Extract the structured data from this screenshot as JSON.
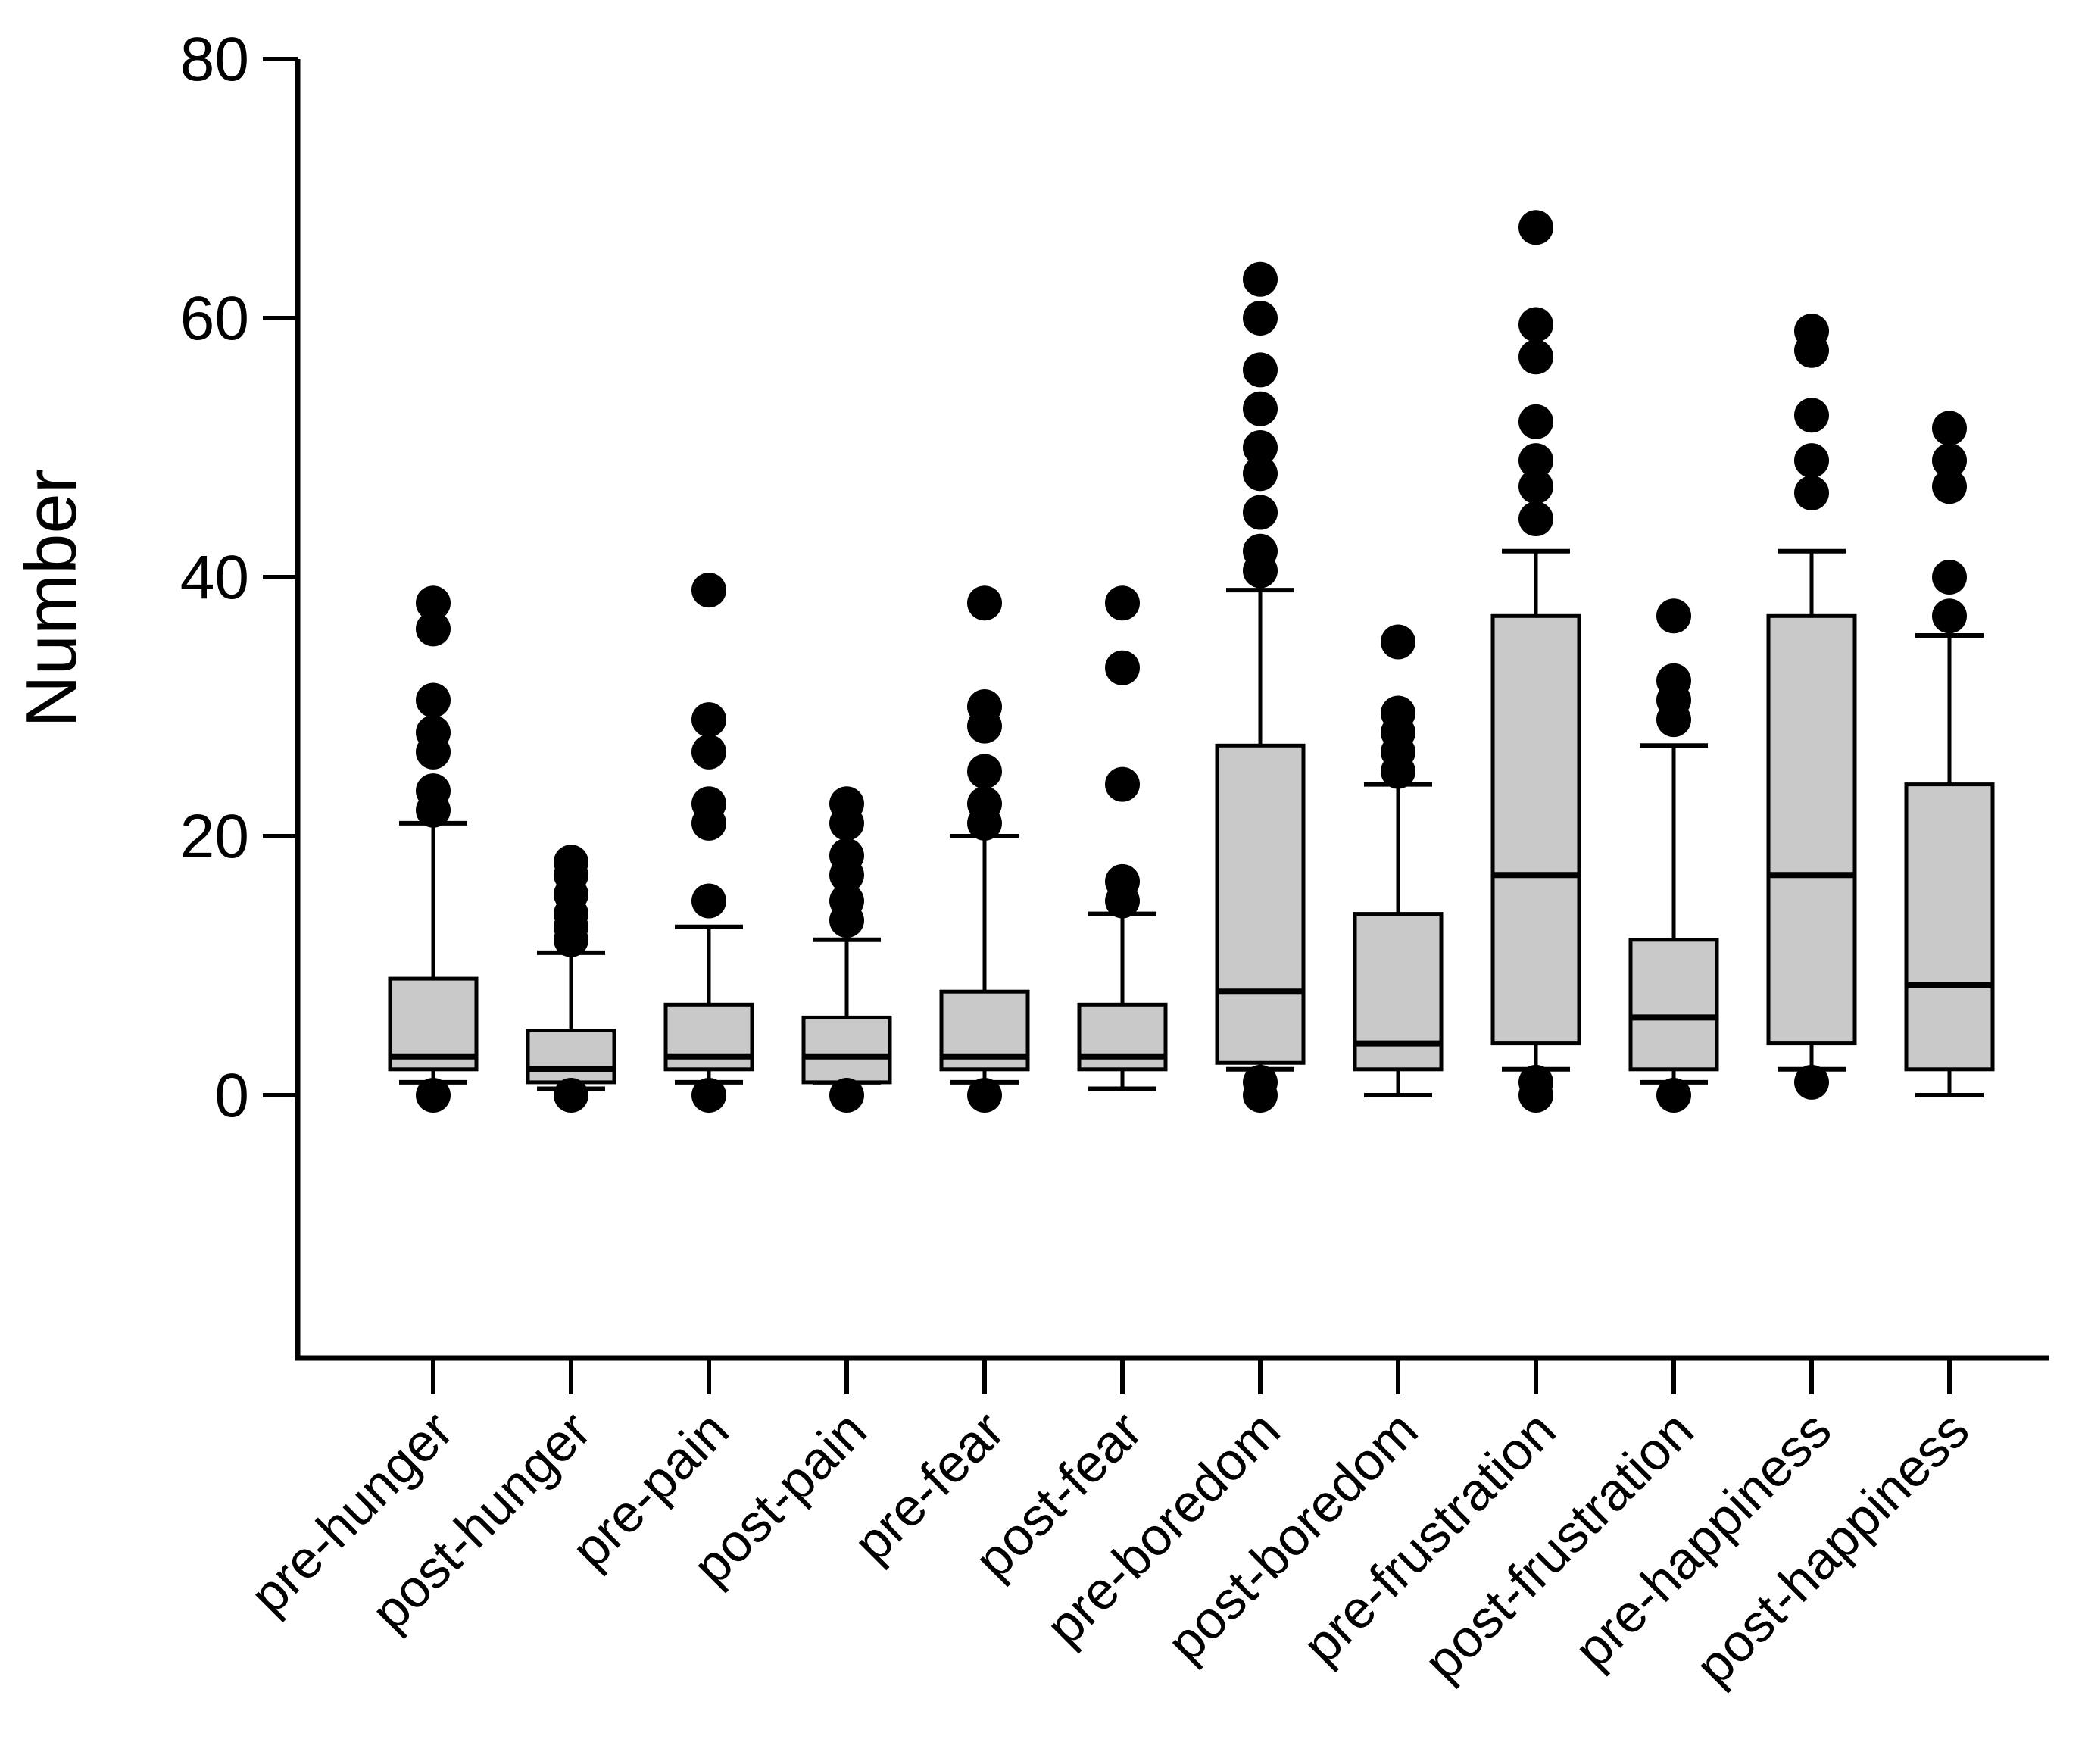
{
  "chart_data": {
    "type": "box",
    "title": "",
    "xlabel": "",
    "ylabel": "Number",
    "yticks": [
      0,
      20,
      40,
      60,
      80
    ],
    "ylim": [
      -20,
      80
    ],
    "grid": false,
    "legend_position": "none",
    "categories": [
      "pre-hunger",
      "post-hunger",
      "pre-pain",
      "post-pain",
      "pre-fear",
      "post-fear",
      "pre-boredom",
      "post-boredom",
      "pre-frustration",
      "post-frustration",
      "pre-happiness",
      "post-happiness"
    ],
    "series": [
      {
        "name": "pre-hunger",
        "q1": 2,
        "median": 3,
        "q3": 9,
        "whisker_low": 1,
        "whisker_high": 21,
        "outliers_high": [
          22,
          23.5,
          26.5,
          28,
          30.5,
          36,
          38
        ],
        "outliers_low": [
          0
        ]
      },
      {
        "name": "post-hunger",
        "q1": 1,
        "median": 2,
        "q3": 5,
        "whisker_low": 0.5,
        "whisker_high": 11,
        "outliers_high": [
          12,
          13,
          14,
          15.5,
          17,
          18
        ],
        "outliers_low": [
          0
        ]
      },
      {
        "name": "pre-pain",
        "q1": 2,
        "median": 3,
        "q3": 7,
        "whisker_low": 1,
        "whisker_high": 13,
        "outliers_high": [
          15,
          21,
          22.5,
          26.5,
          29,
          39
        ],
        "outliers_low": [
          0
        ]
      },
      {
        "name": "post-pain",
        "q1": 1,
        "median": 3,
        "q3": 6,
        "whisker_low": 1,
        "whisker_high": 12,
        "outliers_high": [
          13.5,
          15,
          17,
          18.5,
          21,
          22.5
        ],
        "outliers_low": [
          0
        ]
      },
      {
        "name": "pre-fear",
        "q1": 2,
        "median": 3,
        "q3": 8,
        "whisker_low": 1,
        "whisker_high": 20,
        "outliers_high": [
          21,
          22.5,
          25,
          28.5,
          30,
          38
        ],
        "outliers_low": [
          0
        ]
      },
      {
        "name": "post-fear",
        "q1": 2,
        "median": 3,
        "q3": 7,
        "whisker_low": 0.5,
        "whisker_high": 14,
        "outliers_high": [
          15,
          16.5,
          24,
          33,
          38
        ],
        "outliers_low": []
      },
      {
        "name": "pre-boredom",
        "q1": 2.5,
        "median": 8,
        "q3": 27,
        "whisker_low": 2,
        "whisker_high": 39,
        "outliers_high": [
          40.5,
          42,
          45,
          48,
          50,
          53,
          56,
          60,
          63
        ],
        "outliers_low": [
          1,
          0
        ]
      },
      {
        "name": "post-boredom",
        "q1": 2,
        "median": 4,
        "q3": 14,
        "whisker_low": 0,
        "whisker_high": 24,
        "outliers_high": [
          25,
          26.5,
          28,
          29.5,
          35
        ],
        "outliers_low": []
      },
      {
        "name": "pre-frustration",
        "q1": 4,
        "median": 17,
        "q3": 37,
        "whisker_low": 2,
        "whisker_high": 42,
        "outliers_high": [
          44.5,
          47,
          49,
          52,
          57,
          59.5,
          67
        ],
        "outliers_low": [
          1,
          0
        ]
      },
      {
        "name": "post-frustration",
        "q1": 2,
        "median": 6,
        "q3": 12,
        "whisker_low": 1,
        "whisker_high": 27,
        "outliers_high": [
          29,
          30.5,
          32,
          37
        ],
        "outliers_low": [
          0
        ]
      },
      {
        "name": "pre-happiness",
        "q1": 4,
        "median": 17,
        "q3": 37,
        "whisker_low": 2,
        "whisker_high": 42,
        "outliers_high": [
          46.5,
          49,
          52.5,
          57.5,
          59
        ],
        "outliers_low": [
          1
        ]
      },
      {
        "name": "post-happiness",
        "q1": 2,
        "median": 8.5,
        "q3": 24,
        "whisker_low": 0,
        "whisker_high": 35.5,
        "outliers_high": [
          37,
          40,
          47,
          49,
          51.5
        ],
        "outliers_low": []
      }
    ],
    "colors": {
      "box_fill": "#c9c9c9",
      "stroke": "#000000",
      "background": "#ffffff"
    }
  }
}
